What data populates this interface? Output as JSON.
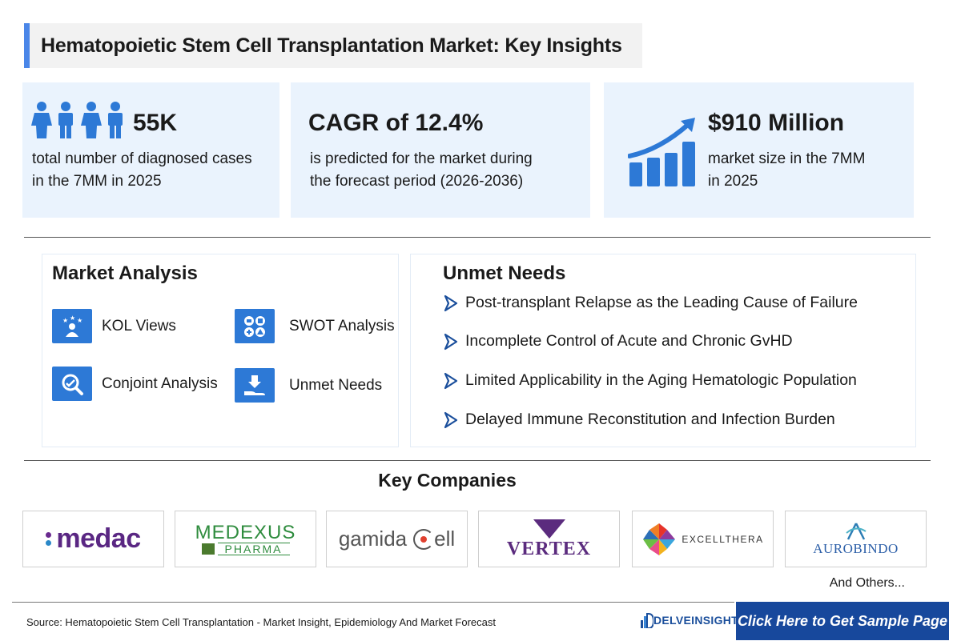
{
  "header": {
    "title": "Hematopoietic Stem Cell Transplantation Market: Key Insights"
  },
  "stats": [
    {
      "value": "55K",
      "desc_line1": "total number of diagnosed cases",
      "desc_line2": "in the 7MM in 2025",
      "icon": "people-icon"
    },
    {
      "value": "CAGR of 12.4%",
      "desc_line1": "is predicted for the market during",
      "desc_line2": "the forecast period (2026-2036)"
    },
    {
      "value": "$910 Million",
      "desc_line1": "market size in the 7MM",
      "desc_line2": "in 2025",
      "icon": "growth-chart-icon"
    }
  ],
  "market_analysis": {
    "title": "Market Analysis",
    "items": [
      {
        "label": "KOL Views",
        "icon": "kol-icon"
      },
      {
        "label": "SWOT Analysis",
        "icon": "swot-icon"
      },
      {
        "label": "Conjoint Analysis",
        "icon": "conjoint-icon"
      },
      {
        "label": "Unmet Needs",
        "icon": "unmet-needs-icon"
      }
    ]
  },
  "unmet_needs": {
    "title": "Unmet Needs",
    "items": [
      "Post-transplant Relapse as the Leading Cause of Failure",
      "Incomplete Control of Acute and Chronic GvHD",
      "Limited Applicability in the Aging Hematologic Population",
      "Delayed Immune Reconstitution and Infection Burden"
    ]
  },
  "key_companies": {
    "title": "Key Companies",
    "logos": [
      {
        "name": "medac"
      },
      {
        "name": "MEDEXUS",
        "sub": "PHARMA"
      },
      {
        "name": "gamida",
        "suffix": "ell"
      },
      {
        "name": "VERTEX"
      },
      {
        "name": "EXCELLTHERA"
      },
      {
        "name": "AUROBINDO"
      }
    ],
    "others": "And Others..."
  },
  "footer": {
    "source": "Source: Hematopoietic Stem Cell Transplantation - Market Insight, Epidemiology And Market Forecast",
    "brand": "DELVEINSIGHT",
    "cta": "Click Here to Get Sample Page"
  },
  "colors": {
    "accent": "#4a86e8",
    "card_bg": "#eaf3fd",
    "icon_blue": "#2d79d6",
    "cta_bg": "#17489c"
  }
}
